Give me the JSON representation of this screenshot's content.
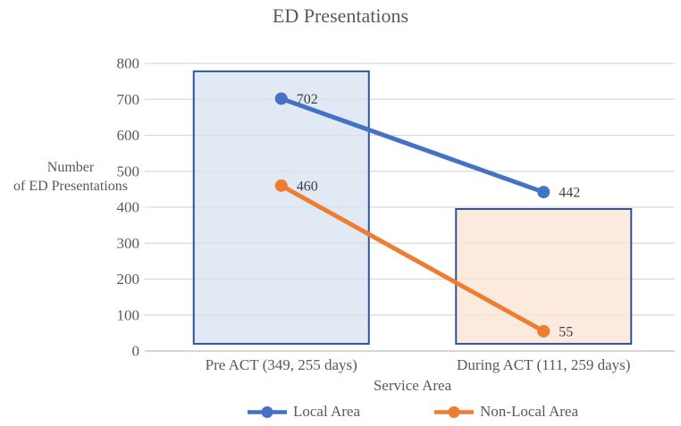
{
  "title": "ED Presentations",
  "chart_data": {
    "type": "line",
    "title": "ED Presentations",
    "xlabel": "Service Area",
    "ylabel": "Number of ED Presentations",
    "ylabel_lines": [
      "Number",
      "of ED Presentations"
    ],
    "categories": [
      "Pre ACT (349, 255 days)",
      "During ACT (111, 259 days)"
    ],
    "series": [
      {
        "name": "Local Area",
        "values": [
          702,
          442
        ],
        "data_labels": [
          "702",
          "442"
        ],
        "color": "#4472C4"
      },
      {
        "name": "Non-Local Area",
        "values": [
          460,
          55
        ],
        "data_labels": [
          "460",
          "55"
        ],
        "color": "#ED7D31"
      }
    ],
    "ylim": [
      0,
      800
    ],
    "yticks": [
      0,
      100,
      200,
      300,
      400,
      500,
      600,
      700,
      800
    ],
    "grid": "horizontal",
    "legend_position": "bottom",
    "highlight_boxes": [
      {
        "category_index": 0,
        "top_value": 778,
        "bottom_value": 20,
        "fill": "#DAE3F3",
        "border": "#2F5597"
      },
      {
        "category_index": 1,
        "top_value": 395,
        "bottom_value": 20,
        "fill": "#FBE5D6",
        "border": "#2F5597"
      }
    ],
    "colors": {
      "gridline": "#D9D9D9",
      "axis_line": "#BFBFBF",
      "tick_text": "#595959",
      "data_label_text": "#404040"
    }
  }
}
